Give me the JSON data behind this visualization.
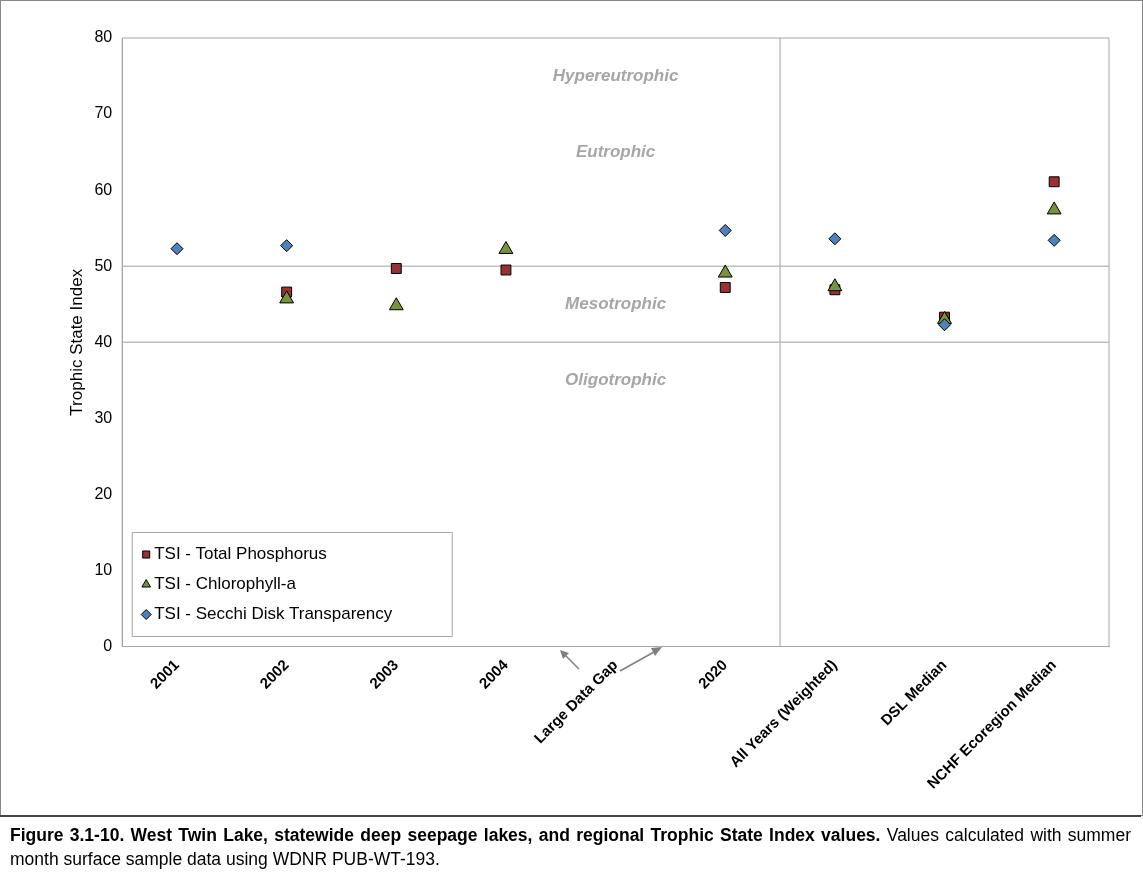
{
  "chart_data": {
    "type": "scatter",
    "title": "Figure 3.1-10.  West Twin Lake, statewide deep seepage lakes, and regional Trophic State Index values.",
    "subtitle": "Values calculated with summer month surface sample data using WDNR PUB-WT-193.",
    "ylabel": "Trophic State Index",
    "categories": [
      "2001",
      "2002",
      "2003",
      "2004",
      "Large Data Gap",
      "2020",
      "All Years (Weighted)",
      "DSL Median",
      "NCHF Ecoregion Median"
    ],
    "series": [
      {
        "name": "TSI - Total Phosphorus",
        "color": "#983232",
        "marker": "square",
        "values": [
          null,
          46.6,
          49.7,
          49.5,
          null,
          47.2,
          46.9,
          43.3,
          61.1
        ]
      },
      {
        "name": "TSI - Chlorophyll-a",
        "color": "#77933c",
        "marker": "triangle",
        "values": [
          null,
          45.7,
          44.8,
          52.2,
          null,
          49.1,
          47.3,
          43.0,
          57.4
        ]
      },
      {
        "name": "TSI - Secchi Disk Transparency",
        "color": "#4f81bd",
        "marker": "diamond",
        "values": [
          52.3,
          52.7,
          null,
          null,
          null,
          54.7,
          53.6,
          42.3,
          53.4
        ]
      }
    ],
    "ylim": [
      0,
      80
    ],
    "yticks": [
      0,
      10,
      20,
      30,
      40,
      50,
      60,
      70,
      80
    ],
    "grid": false,
    "legend": "bottom left",
    "ref_lines": [
      {
        "axis": "y",
        "value": 40,
        "color": "#bfbfbf"
      },
      {
        "axis": "y",
        "value": 50,
        "color": "#bfbfbf"
      }
    ],
    "annotations": [
      "Hypereutrophic",
      "Eutrophic",
      "Mesotrophic",
      "Oligotrophic"
    ]
  }
}
